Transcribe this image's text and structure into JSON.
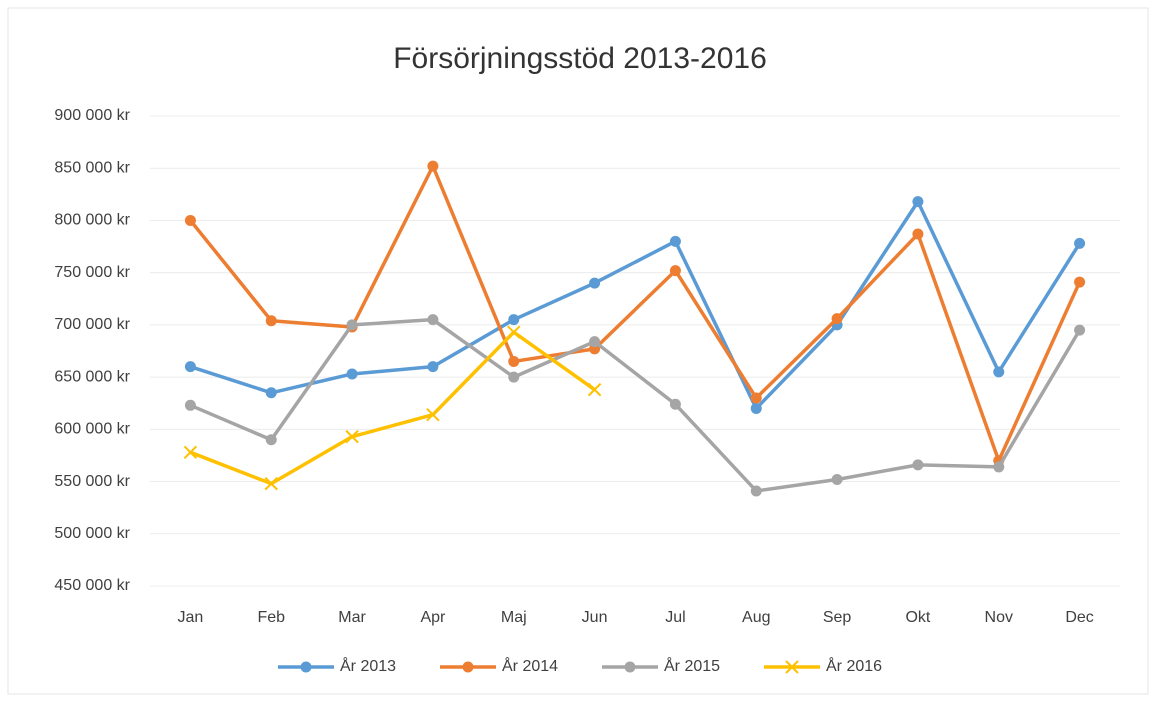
{
  "chart_data": {
    "type": "line",
    "title": "Försörjningsstöd 2013-2016",
    "categories": [
      "Jan",
      "Feb",
      "Mar",
      "Apr",
      "Maj",
      "Jun",
      "Jul",
      "Aug",
      "Sep",
      "Okt",
      "Nov",
      "Dec"
    ],
    "series": [
      {
        "name": "År 2013",
        "color": "#5b9bd5",
        "marker": "circle",
        "values": [
          660000,
          635000,
          653000,
          660000,
          705000,
          740000,
          780000,
          620000,
          700000,
          818000,
          655000,
          778000
        ]
      },
      {
        "name": "År 2014",
        "color": "#ed7d31",
        "marker": "circle",
        "values": [
          800000,
          704000,
          698000,
          852000,
          665000,
          677000,
          752000,
          630000,
          706000,
          787000,
          570000,
          741000
        ]
      },
      {
        "name": "År 2015",
        "color": "#a5a5a5",
        "marker": "circle",
        "values": [
          623000,
          590000,
          700000,
          705000,
          650000,
          684000,
          624000,
          541000,
          552000,
          566000,
          564000,
          695000
        ]
      },
      {
        "name": "År 2016",
        "color": "#ffc000",
        "marker": "x",
        "values": [
          578000,
          548000,
          593000,
          614000,
          693000,
          638000,
          null,
          null,
          null,
          null,
          null,
          null
        ]
      }
    ],
    "ylim": [
      450000,
      900000
    ],
    "yticks": [
      {
        "value": 450000,
        "label": "450 000 kr"
      },
      {
        "value": 500000,
        "label": "500 000 kr"
      },
      {
        "value": 550000,
        "label": "550 000 kr"
      },
      {
        "value": 600000,
        "label": "600 000 kr"
      },
      {
        "value": 650000,
        "label": "650 000 kr"
      },
      {
        "value": 700000,
        "label": "700 000 kr"
      },
      {
        "value": 750000,
        "label": "750 000 kr"
      },
      {
        "value": 800000,
        "label": "800 000 kr"
      },
      {
        "value": 850000,
        "label": "850 000 kr"
      },
      {
        "value": 900000,
        "label": "900 000 kr"
      }
    ],
    "grid": true,
    "legend": "bottom"
  }
}
